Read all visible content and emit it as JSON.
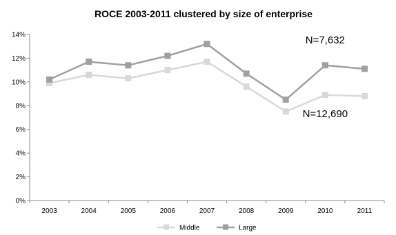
{
  "chart_data": {
    "type": "line",
    "title": "ROCE 2003-2011  clustered by size of enterprise",
    "xlabel": "",
    "ylabel": "",
    "categories": [
      "2003",
      "2004",
      "2005",
      "2006",
      "2007",
      "2008",
      "2009",
      "2010",
      "2011"
    ],
    "ylim": [
      0,
      14
    ],
    "yticks": [
      0,
      2,
      4,
      6,
      8,
      10,
      12,
      14
    ],
    "ytick_labels": [
      "0%",
      "2%",
      "4%",
      "6%",
      "8%",
      "10%",
      "12%",
      "14%"
    ],
    "grid": false,
    "legend_position": "bottom-center",
    "series": [
      {
        "name": "Middle",
        "color": "#d9d9d9",
        "marker": "square",
        "values": [
          9.9,
          10.6,
          10.3,
          11.0,
          11.7,
          9.6,
          7.5,
          8.9,
          8.8
        ]
      },
      {
        "name": "Large",
        "color": "#a0a0a0",
        "marker": "square",
        "values": [
          10.2,
          11.7,
          11.4,
          12.2,
          13.2,
          10.7,
          8.5,
          11.4,
          11.1
        ]
      }
    ],
    "annotations": [
      {
        "text": "N=7,632",
        "series": "Large",
        "category": "2010",
        "placement": "above"
      },
      {
        "text": "N=12,690",
        "series": "Middle",
        "category": "2010",
        "placement": "below"
      }
    ]
  }
}
